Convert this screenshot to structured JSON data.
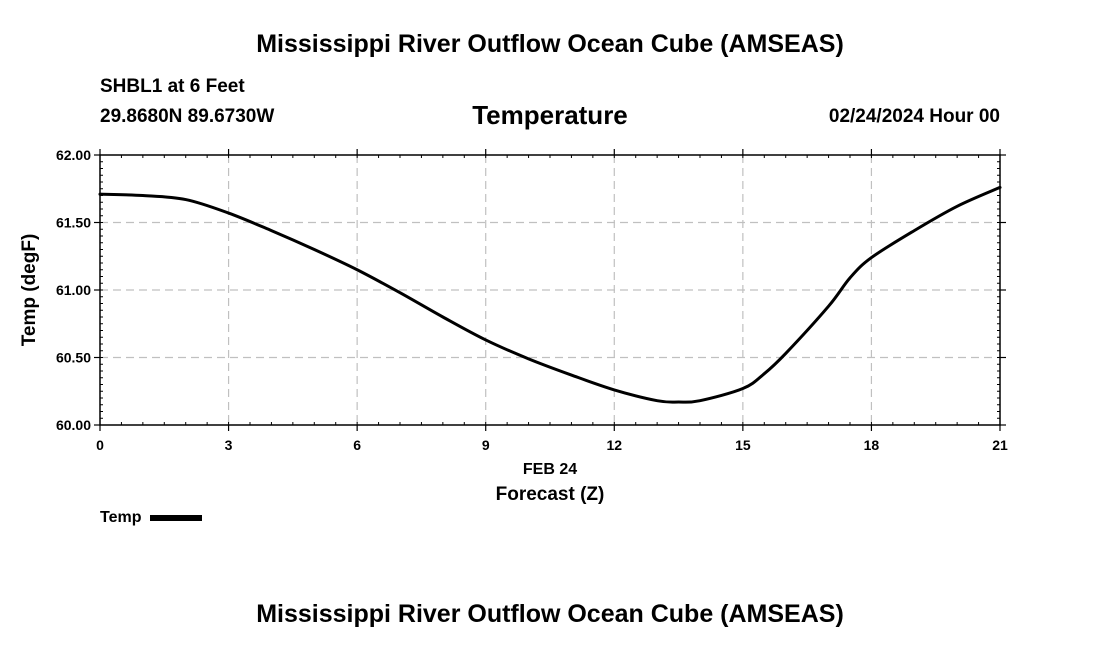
{
  "header": {
    "title": "Mississippi River Outflow Ocean Cube (AMSEAS)",
    "station": "SHBL1 at 6 Feet",
    "coords": "29.8680N  89.6730W",
    "run_time": "02/24/2024 Hour 00"
  },
  "footer": {
    "title": "Mississippi River Outflow Ocean Cube (AMSEAS)"
  },
  "legend": {
    "label": "Temp"
  },
  "colors": {
    "line": "#000000",
    "grid": "#c0c0c0",
    "background": "#ffffff"
  },
  "chart_data": {
    "type": "line",
    "title": "Temperature",
    "xlabel": "Forecast (Z)",
    "xlabel_date": "FEB 24",
    "ylabel": "Temp (degF)",
    "xlim": [
      0,
      21
    ],
    "ylim": [
      60.0,
      62.0
    ],
    "xticks": [
      0,
      3,
      6,
      9,
      12,
      15,
      18,
      21
    ],
    "yticks": [
      60.0,
      60.5,
      61.0,
      61.5,
      62.0
    ],
    "ytick_labels": [
      "60.00",
      "60.50",
      "61.00",
      "61.50",
      "62.00"
    ],
    "grid": true,
    "series": [
      {
        "name": "Temp",
        "x": [
          0,
          1,
          2,
          3,
          4,
          5,
          6,
          7,
          8,
          9,
          10,
          11,
          12,
          13,
          13.5,
          14,
          15,
          15.5,
          16,
          17,
          17.5,
          18,
          19,
          20,
          21
        ],
        "values": [
          61.71,
          61.7,
          61.67,
          61.57,
          61.44,
          61.3,
          61.15,
          60.98,
          60.8,
          60.63,
          60.49,
          60.37,
          60.26,
          60.18,
          60.17,
          60.18,
          60.27,
          60.38,
          60.53,
          60.88,
          61.09,
          61.24,
          61.44,
          61.62,
          61.76
        ]
      }
    ]
  }
}
